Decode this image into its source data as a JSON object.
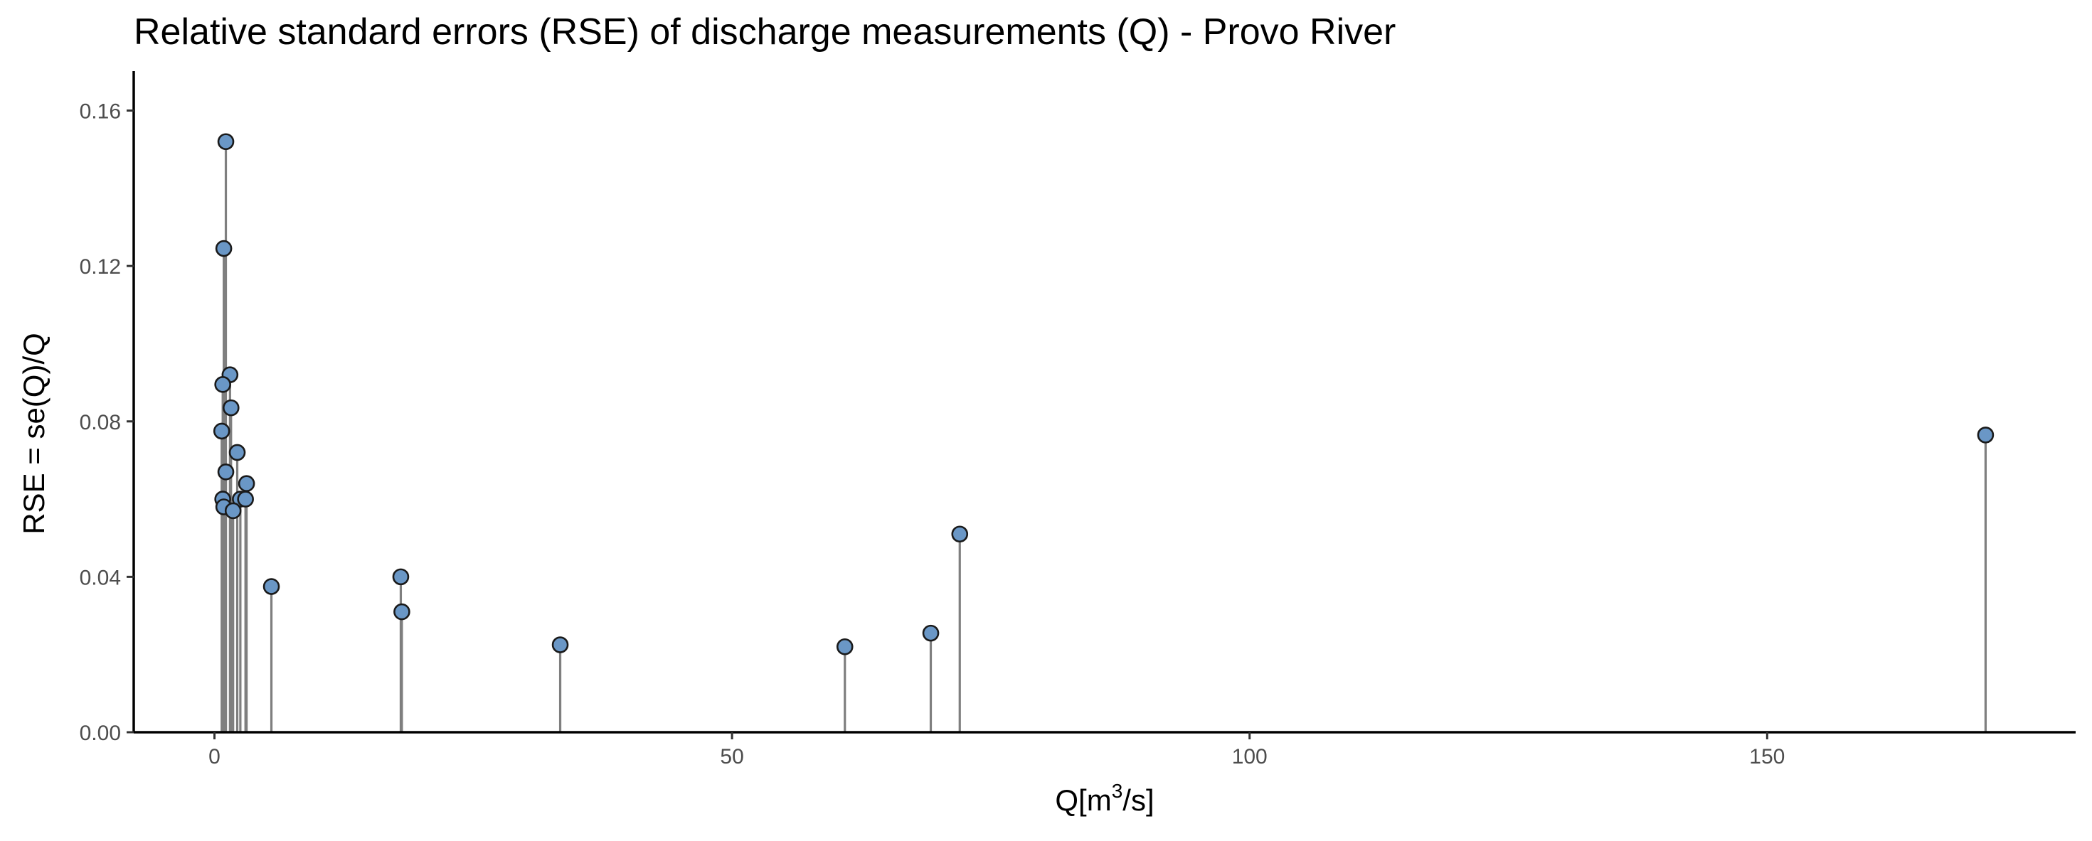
{
  "chart_data": {
    "type": "scatter",
    "style": "lollipop",
    "title": "Relative standard errors (RSE) of discharge measurements (Q) - Provo River",
    "xlabel": {
      "prefix": "Q[m",
      "superscript": "3",
      "suffix": "/s]"
    },
    "ylabel": "RSE =  se(Q)/Q",
    "xlim": [
      -7.8,
      179.8
    ],
    "ylim": [
      0,
      0.1665
    ],
    "xticks": [
      0,
      50,
      100,
      150
    ],
    "xtick_labels": [
      "0",
      "50",
      "100",
      "150"
    ],
    "yticks": [
      0,
      0.04,
      0.08,
      0.12,
      0.16
    ],
    "ytick_labels": [
      "0.00",
      "0.04",
      "0.08",
      "0.12",
      "0.16"
    ],
    "grid": false,
    "legend": "none",
    "colors": {
      "point_fill": "#6a97c6",
      "point_stroke": "#1a1a1a",
      "stem": "#7f7f7f",
      "axis": "#000000"
    },
    "points": [
      {
        "x": 1.1,
        "y": 0.152
      },
      {
        "x": 0.9,
        "y": 0.1245
      },
      {
        "x": 1.5,
        "y": 0.092
      },
      {
        "x": 0.8,
        "y": 0.0895
      },
      {
        "x": 1.6,
        "y": 0.0835
      },
      {
        "x": 0.7,
        "y": 0.0775
      },
      {
        "x": 2.2,
        "y": 0.072
      },
      {
        "x": 1.1,
        "y": 0.067
      },
      {
        "x": 3.1,
        "y": 0.064
      },
      {
        "x": 2.5,
        "y": 0.06
      },
      {
        "x": 3.0,
        "y": 0.06
      },
      {
        "x": 0.8,
        "y": 0.06
      },
      {
        "x": 0.9,
        "y": 0.058
      },
      {
        "x": 1.8,
        "y": 0.057
      },
      {
        "x": 5.5,
        "y": 0.0375
      },
      {
        "x": 18.0,
        "y": 0.04
      },
      {
        "x": 18.1,
        "y": 0.031
      },
      {
        "x": 33.4,
        "y": 0.0225
      },
      {
        "x": 60.9,
        "y": 0.022
      },
      {
        "x": 69.2,
        "y": 0.0255
      },
      {
        "x": 72.0,
        "y": 0.051
      },
      {
        "x": 171.1,
        "y": 0.0765
      }
    ]
  }
}
